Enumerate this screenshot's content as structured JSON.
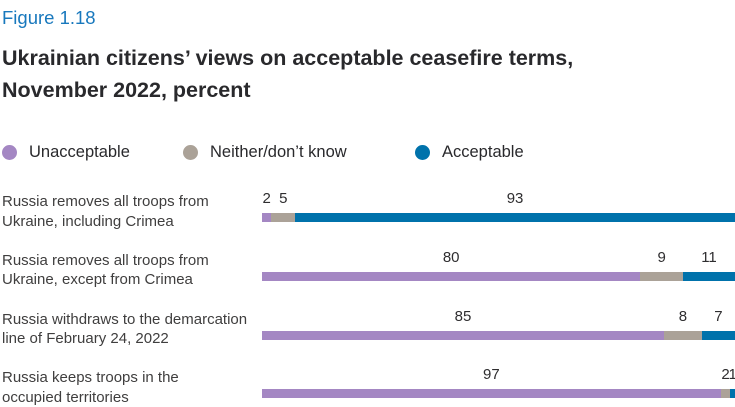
{
  "figure_label": "Figure 1.18",
  "title": {
    "line1": "Ukrainian citizens’ views on acceptable ceasefire terms,",
    "line2": "November 2022, percent"
  },
  "colors": {
    "unacceptable": "#a487c3",
    "neither_dont_know": "#aba298",
    "acceptable": "#0072ab",
    "figure_label": "#1878bd",
    "title_text": "#29292c",
    "category_text": "#3f3e3e",
    "value_text": "#2e2d2f"
  },
  "legend": {
    "items": [
      {
        "key": "unacceptable",
        "label": "Unacceptable"
      },
      {
        "key": "neither_dont_know",
        "label": "Neither/don’t know"
      },
      {
        "key": "acceptable",
        "label": "Acceptable"
      }
    ]
  },
  "chart_data": {
    "type": "bar",
    "orientation": "horizontal",
    "stacked": true,
    "unit": "percent",
    "xlim": [
      0,
      100
    ],
    "title": "Ukrainian citizens’ views on acceptable ceasefire terms, November 2022, percent",
    "legend_position": "top",
    "categories": [
      "Russia removes all troops from Ukraine, including Crimea",
      "Russia removes all troops from Ukraine, except from Crimea",
      "Russia withdraws to the demarcation line of February 24, 2022",
      "Russia keeps troops in the occupied territories"
    ],
    "category_label_lines": [
      [
        "Russia removes all troops from",
        "Ukraine, including Crimea"
      ],
      [
        "Russia removes all troops from",
        "Ukraine, except from Crimea"
      ],
      [
        "Russia withdraws to the demarcation",
        "line of February 24, 2022"
      ],
      [
        "Russia keeps troops in the",
        "occupied territories"
      ]
    ],
    "series": [
      {
        "key": "unacceptable",
        "name": "Unacceptable",
        "values": [
          2,
          80,
          85,
          97
        ]
      },
      {
        "key": "neither_dont_know",
        "name": "Neither/don’t know",
        "values": [
          5,
          9,
          8,
          2
        ]
      },
      {
        "key": "acceptable",
        "name": "Acceptable",
        "values": [
          93,
          11,
          7,
          1
        ]
      }
    ]
  }
}
